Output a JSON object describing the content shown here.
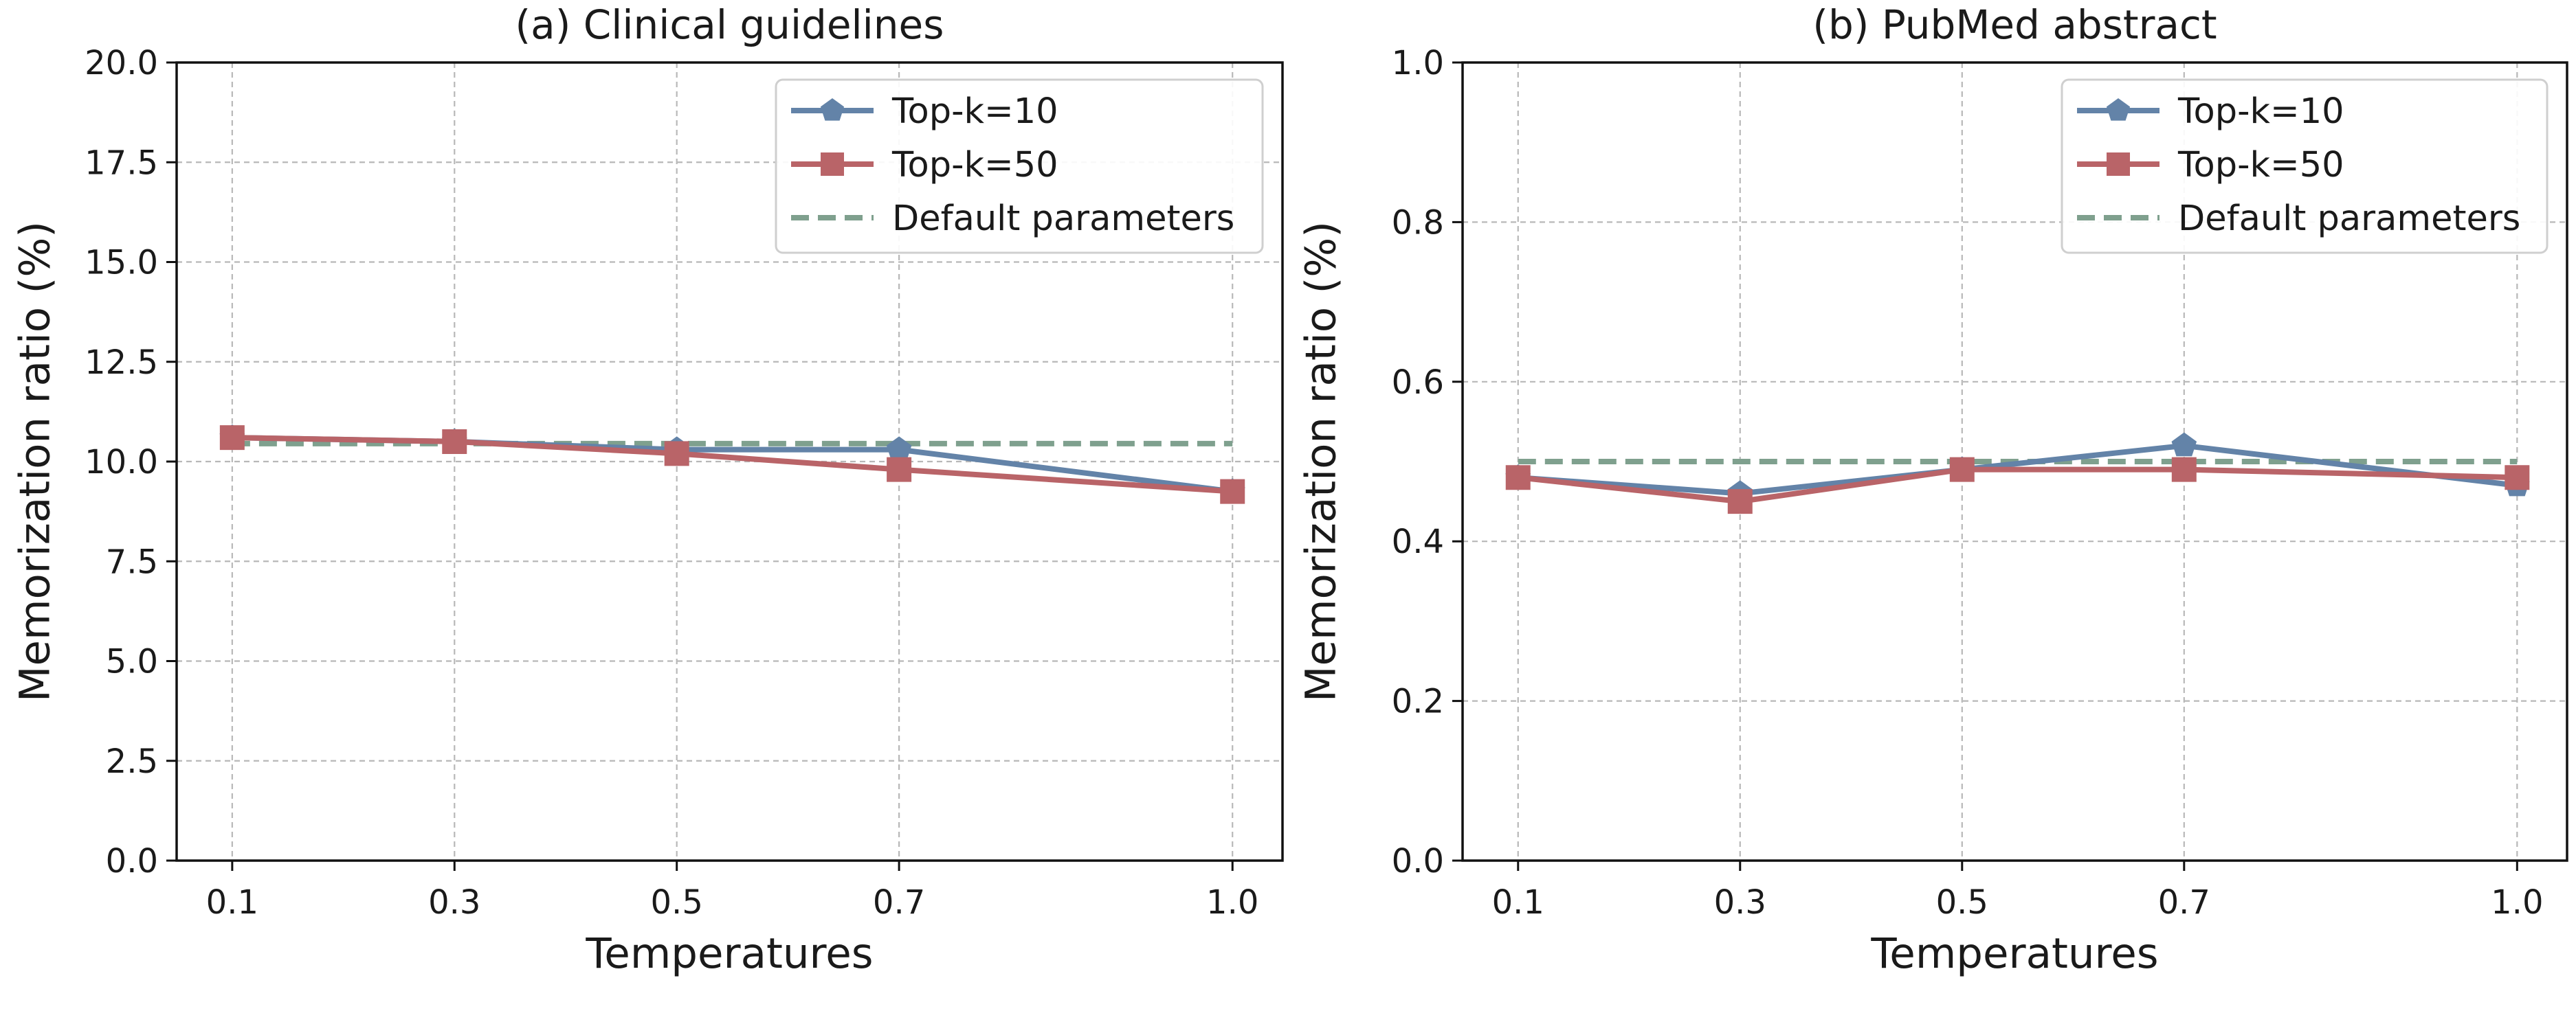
{
  "chart_data": [
    {
      "type": "line",
      "title": "(a) Clinical guidelines",
      "xlabel": "Temperatures",
      "ylabel": "Memorization ratio (%)",
      "x": [
        0.1,
        0.3,
        0.5,
        0.7,
        1.0
      ],
      "x_tick_labels": [
        "0.1",
        "0.3",
        "0.5",
        "0.7",
        "1.0"
      ],
      "xlim": [
        0.05,
        1.045
      ],
      "ylim": [
        0,
        20
      ],
      "y_ticks": [
        0.0,
        2.5,
        5.0,
        7.5,
        10.0,
        12.5,
        15.0,
        17.5,
        20.0
      ],
      "y_tick_labels": [
        "0.0",
        "2.5",
        "5.0",
        "7.5",
        "10.0",
        "12.5",
        "15.0",
        "17.5",
        "20.0"
      ],
      "grid": true,
      "legend_position": "top-right",
      "series": [
        {
          "name": "Top-k=10",
          "values": [
            10.6,
            10.5,
            10.3,
            10.3,
            9.25
          ],
          "color": "#6383a8",
          "marker": "pentagon",
          "style": "solid"
        },
        {
          "name": "Top-k=50",
          "values": [
            10.6,
            10.5,
            10.2,
            9.8,
            9.25
          ],
          "color": "#b96468",
          "marker": "square",
          "style": "solid"
        },
        {
          "name": "Default parameters",
          "values": [
            10.45,
            10.45,
            10.45,
            10.45,
            10.45
          ],
          "color": "#7fa08e",
          "marker": "none",
          "style": "dashed"
        }
      ]
    },
    {
      "type": "line",
      "title": "(b) PubMed abstract",
      "xlabel": "Temperatures",
      "ylabel": "Memorization ratio (%)",
      "x": [
        0.1,
        0.3,
        0.5,
        0.7,
        1.0
      ],
      "x_tick_labels": [
        "0.1",
        "0.3",
        "0.5",
        "0.7",
        "1.0"
      ],
      "xlim": [
        0.05,
        1.045
      ],
      "ylim": [
        0,
        1
      ],
      "y_ticks": [
        0.0,
        0.2,
        0.4,
        0.6,
        0.8,
        1.0
      ],
      "y_tick_labels": [
        "0.0",
        "0.2",
        "0.4",
        "0.6",
        "0.8",
        "1.0"
      ],
      "grid": true,
      "legend_position": "top-right",
      "series": [
        {
          "name": "Top-k=10",
          "values": [
            0.48,
            0.46,
            0.49,
            0.52,
            0.47
          ],
          "color": "#6383a8",
          "marker": "pentagon",
          "style": "solid"
        },
        {
          "name": "Top-k=50",
          "values": [
            0.48,
            0.45,
            0.49,
            0.49,
            0.48
          ],
          "color": "#b96468",
          "marker": "square",
          "style": "solid"
        },
        {
          "name": "Default parameters",
          "values": [
            0.5,
            0.5,
            0.5,
            0.5,
            0.5
          ],
          "color": "#7fa08e",
          "marker": "none",
          "style": "dashed"
        }
      ]
    }
  ]
}
